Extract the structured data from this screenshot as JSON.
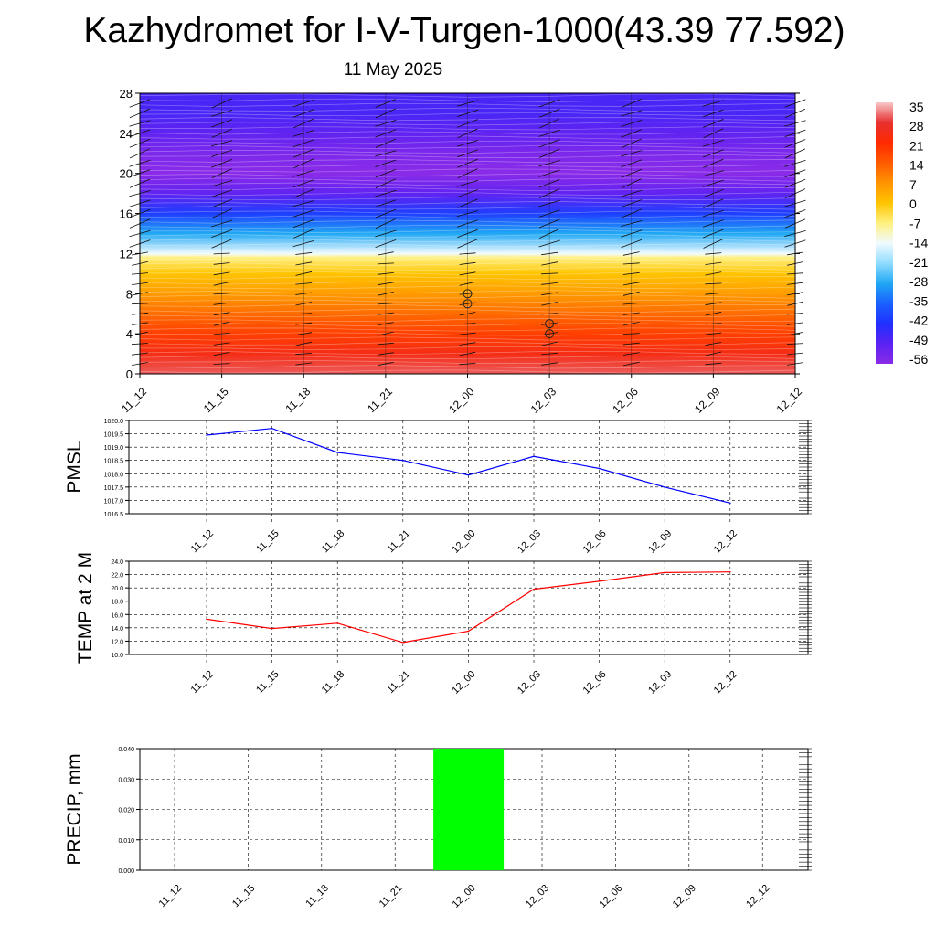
{
  "title": "Kazhydromet for I-V-Turgen-1000(43.39 77.592)",
  "subtitle": "11 May 2025",
  "time_labels": [
    "11_12",
    "11_15",
    "11_18",
    "11_21",
    "12_00",
    "12_03",
    "12_06",
    "12_09",
    "12_12"
  ],
  "colorbar": {
    "labels": [
      "35",
      "28",
      "21",
      "14",
      "7",
      "0",
      "-7",
      "-14",
      "-21",
      "-28",
      "-35",
      "-42",
      "-49",
      "-56"
    ],
    "stops": [
      "#f7c8c8",
      "#e83030",
      "#ff2a00",
      "#ff5a00",
      "#ff9400",
      "#ffc400",
      "#fff080",
      "#f0fbff",
      "#90dcff",
      "#20a8f4",
      "#1a60ff",
      "#2030ff",
      "#5a22f2",
      "#8a2be8"
    ]
  },
  "chart_data": [
    {
      "type": "heatmap",
      "title": "",
      "xlabel": "",
      "ylabel": "",
      "categories": [
        "11_12",
        "11_15",
        "11_18",
        "11_21",
        "12_00",
        "12_03",
        "12_06",
        "12_09",
        "12_12"
      ],
      "ylim": [
        0,
        28
      ],
      "yticks": [
        "0",
        "4",
        "8",
        "12",
        "16",
        "20",
        "24",
        "28"
      ],
      "description_levels": [
        0,
        28
      ],
      "temperature_profile": {
        "y": [
          0,
          2,
          4,
          6,
          8,
          10,
          11.6,
          12,
          14,
          16,
          18,
          20,
          22,
          24,
          26,
          28
        ],
        "values": [
          30,
          24,
          18,
          12,
          6,
          0,
          -7,
          -14,
          -28,
          -40,
          -50,
          -56,
          -54,
          -50,
          -47,
          -47
        ]
      },
      "markers": [
        {
          "x": "12_00",
          "y": [
            8,
            7
          ]
        },
        {
          "x": "12_03",
          "y": [
            5,
            4
          ]
        }
      ]
    },
    {
      "type": "line",
      "ylabel": "PMSL",
      "ylim": [
        1016.5,
        1020.0
      ],
      "yticks": [
        "1016.5",
        "1017.0",
        "1017.5",
        "1018.0",
        "1018.5",
        "1019.0",
        "1019.5",
        "1020.0"
      ],
      "categories": [
        "11_12",
        "11_15",
        "11_18",
        "11_21",
        "12_00",
        "12_03",
        "12_06",
        "12_09",
        "12_12"
      ],
      "color": "#0000ff",
      "values": [
        1019.45,
        1019.7,
        1018.8,
        1018.5,
        1017.95,
        1018.65,
        1018.2,
        1017.5,
        1016.9
      ]
    },
    {
      "type": "line",
      "ylabel": "TEMP at 2 M",
      "ylim": [
        10.0,
        24.0
      ],
      "yticks": [
        "10.0",
        "12.0",
        "14.0",
        "16.0",
        "18.0",
        "20.0",
        "22.0",
        "24.0"
      ],
      "categories": [
        "11_12",
        "11_15",
        "11_18",
        "11_21",
        "12_00",
        "12_03",
        "12_06",
        "12_09",
        "12_12"
      ],
      "color": "#ff0000",
      "values": [
        15.3,
        13.9,
        14.7,
        11.8,
        13.5,
        19.8,
        21.0,
        22.3,
        22.4
      ]
    },
    {
      "type": "bar",
      "ylabel": "PRECIP, mm",
      "ylim": [
        0.0,
        0.04
      ],
      "yticks": [
        "0.000",
        "0.010",
        "0.020",
        "0.030",
        "0.040"
      ],
      "categories": [
        "11_12",
        "11_15",
        "11_18",
        "11_21",
        "12_00",
        "12_03",
        "12_06",
        "12_09",
        "12_12"
      ],
      "color": "#00ff00",
      "values": [
        0,
        0,
        0,
        0,
        0.04,
        0,
        0,
        0,
        0
      ]
    }
  ]
}
